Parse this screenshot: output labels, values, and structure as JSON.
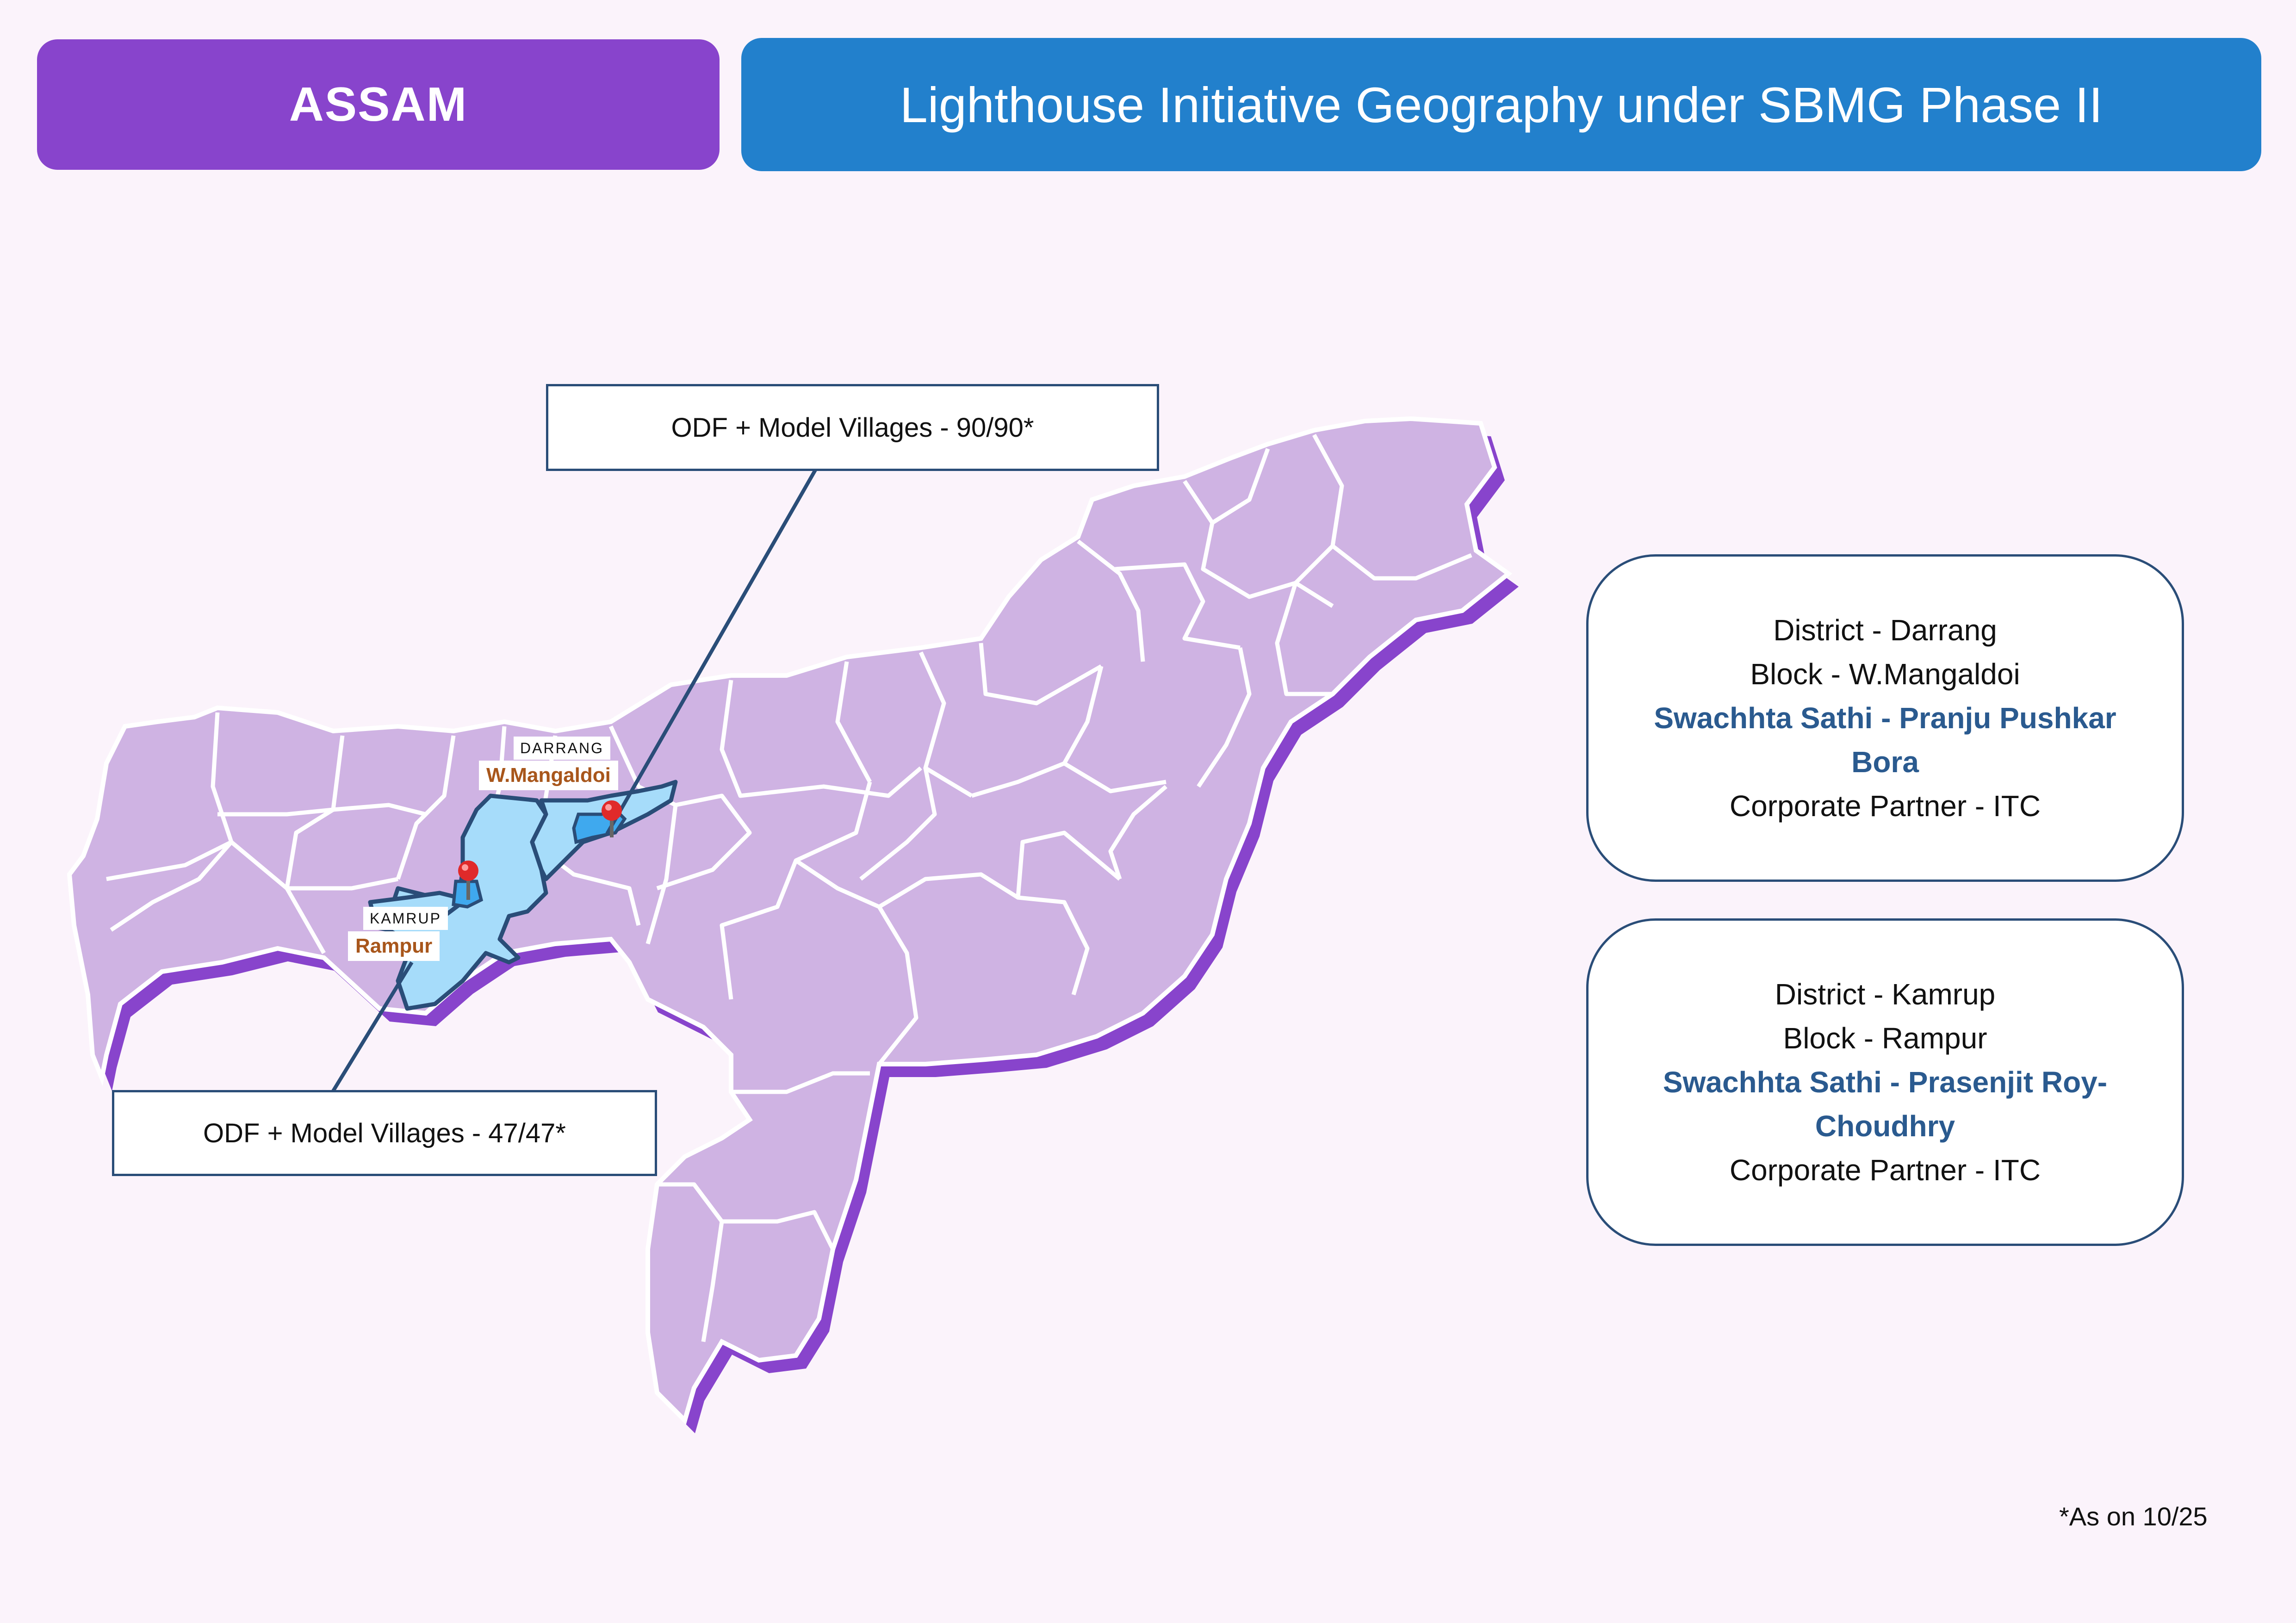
{
  "header": {
    "state": "ASSAM",
    "title": "Lighthouse Initiative Geography under SBMG Phase II"
  },
  "map": {
    "darrang": {
      "district": "DARRANG",
      "block": "W.Mangaldoi",
      "callout": "ODF + Model Villages - 90/90*"
    },
    "kamrup": {
      "district": "KAMRUP",
      "block": "Rampur",
      "callout": "ODF + Model Villages - 47/47*"
    },
    "colors": {
      "state_fill": "#cfb3e3",
      "state_shadow": "#8844cc",
      "highlight": "#a6dcfa",
      "highlight_dark": "#3fa9ee",
      "outline": "#2a4d78",
      "pin": "#e02a2a"
    }
  },
  "cards": {
    "darrang": {
      "district": "District - Darrang",
      "block": "Block - W.Mangaldoi",
      "sathi": "Swachhta Sathi - Pranju Pushkar Bora",
      "partner": "Corporate Partner - ITC"
    },
    "kamrup": {
      "district": "District - Kamrup",
      "block": "Block - Rampur",
      "sathi": "Swachhta Sathi - Prasenjit Roy-Choudhry",
      "partner": "Corporate Partner - ITC"
    }
  },
  "footnote": "*As on 10/25"
}
